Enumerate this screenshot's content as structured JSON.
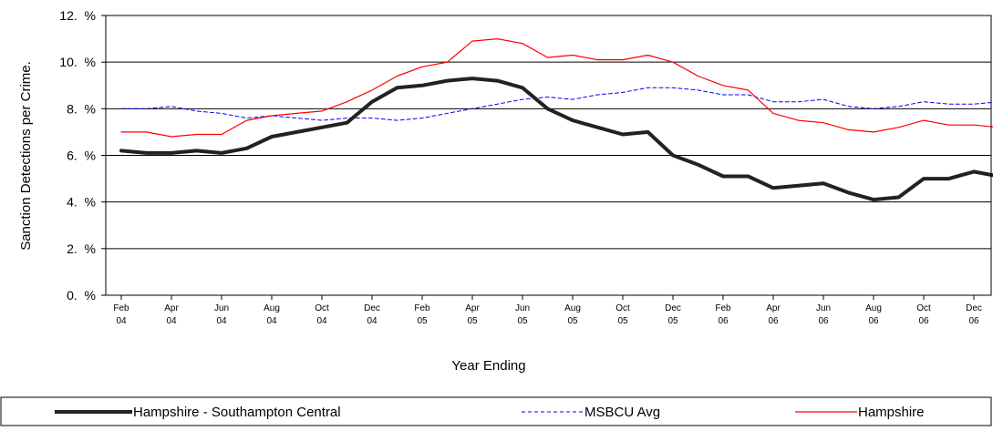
{
  "chart_data": {
    "type": "line",
    "xlabel": "Year Ending",
    "ylabel": "Sanction Detections per Crime.",
    "ylim": [
      0,
      12
    ],
    "y_ticks": [
      0,
      2,
      4,
      6,
      8,
      10,
      12
    ],
    "y_tick_labels": [
      "0.  %",
      "2.  %",
      "4.  %",
      "6.  %",
      "8.  %",
      "10.  %",
      "12.  %"
    ],
    "grid": true,
    "legend_position": "bottom",
    "x_ticks": [
      {
        "month": "Feb",
        "year": "04"
      },
      {
        "month": "Apr",
        "year": "04"
      },
      {
        "month": "Jun",
        "year": "04"
      },
      {
        "month": "Aug",
        "year": "04"
      },
      {
        "month": "Oct",
        "year": "04"
      },
      {
        "month": "Dec",
        "year": "04"
      },
      {
        "month": "Feb",
        "year": "05"
      },
      {
        "month": "Apr",
        "year": "05"
      },
      {
        "month": "Jun",
        "year": "05"
      },
      {
        "month": "Aug",
        "year": "05"
      },
      {
        "month": "Oct",
        "year": "05"
      },
      {
        "month": "Dec",
        "year": "05"
      },
      {
        "month": "Feb",
        "year": "06"
      },
      {
        "month": "Apr",
        "year": "06"
      },
      {
        "month": "Jun",
        "year": "06"
      },
      {
        "month": "Aug",
        "year": "06"
      },
      {
        "month": "Oct",
        "year": "06"
      },
      {
        "month": "Dec",
        "year": "06"
      }
    ],
    "x": [
      "2004-02",
      "2004-03",
      "2004-04",
      "2004-05",
      "2004-06",
      "2004-07",
      "2004-08",
      "2004-09",
      "2004-10",
      "2004-11",
      "2004-12",
      "2005-01",
      "2005-02",
      "2005-03",
      "2005-04",
      "2005-05",
      "2005-06",
      "2005-07",
      "2005-08",
      "2005-09",
      "2005-10",
      "2005-11",
      "2005-12",
      "2006-01",
      "2006-02",
      "2006-03",
      "2006-04",
      "2006-05",
      "2006-06",
      "2006-07",
      "2006-08",
      "2006-09",
      "2006-10",
      "2006-11",
      "2006-12",
      "2007-01"
    ],
    "series": [
      {
        "name": "Hampshire - Southampton Central",
        "color": "#222222",
        "style": "solid-thick",
        "values": [
          6.2,
          6.1,
          6.1,
          6.2,
          6.1,
          6.3,
          6.8,
          7.0,
          7.2,
          7.4,
          8.3,
          8.9,
          9.0,
          9.2,
          9.3,
          9.2,
          8.9,
          8.0,
          7.5,
          7.2,
          6.9,
          7.0,
          6.0,
          5.6,
          5.1,
          5.1,
          4.6,
          4.7,
          4.8,
          4.4,
          4.1,
          4.2,
          5.0,
          5.0,
          5.3,
          5.1
        ]
      },
      {
        "name": "MSBCU Avg",
        "color": "#0000ff",
        "style": "dashed",
        "values": [
          8.0,
          8.0,
          8.1,
          7.9,
          7.8,
          7.6,
          7.7,
          7.6,
          7.5,
          7.6,
          7.6,
          7.5,
          7.6,
          7.8,
          8.0,
          8.2,
          8.4,
          8.5,
          8.4,
          8.6,
          8.7,
          8.9,
          8.9,
          8.8,
          8.6,
          8.6,
          8.3,
          8.3,
          8.4,
          8.1,
          8.0,
          8.1,
          8.3,
          8.2,
          8.2,
          8.3
        ]
      },
      {
        "name": "Hampshire",
        "color": "#ff0000",
        "style": "solid-thin",
        "values": [
          7.0,
          7.0,
          6.8,
          6.9,
          6.9,
          7.5,
          7.7,
          7.8,
          7.9,
          8.3,
          8.8,
          9.4,
          9.8,
          10.0,
          10.9,
          11.0,
          10.8,
          10.2,
          10.3,
          10.1,
          10.1,
          10.3,
          10.0,
          9.4,
          9.0,
          8.8,
          7.8,
          7.5,
          7.4,
          7.1,
          7.0,
          7.2,
          7.5,
          7.3,
          7.3,
          7.2
        ]
      }
    ]
  }
}
